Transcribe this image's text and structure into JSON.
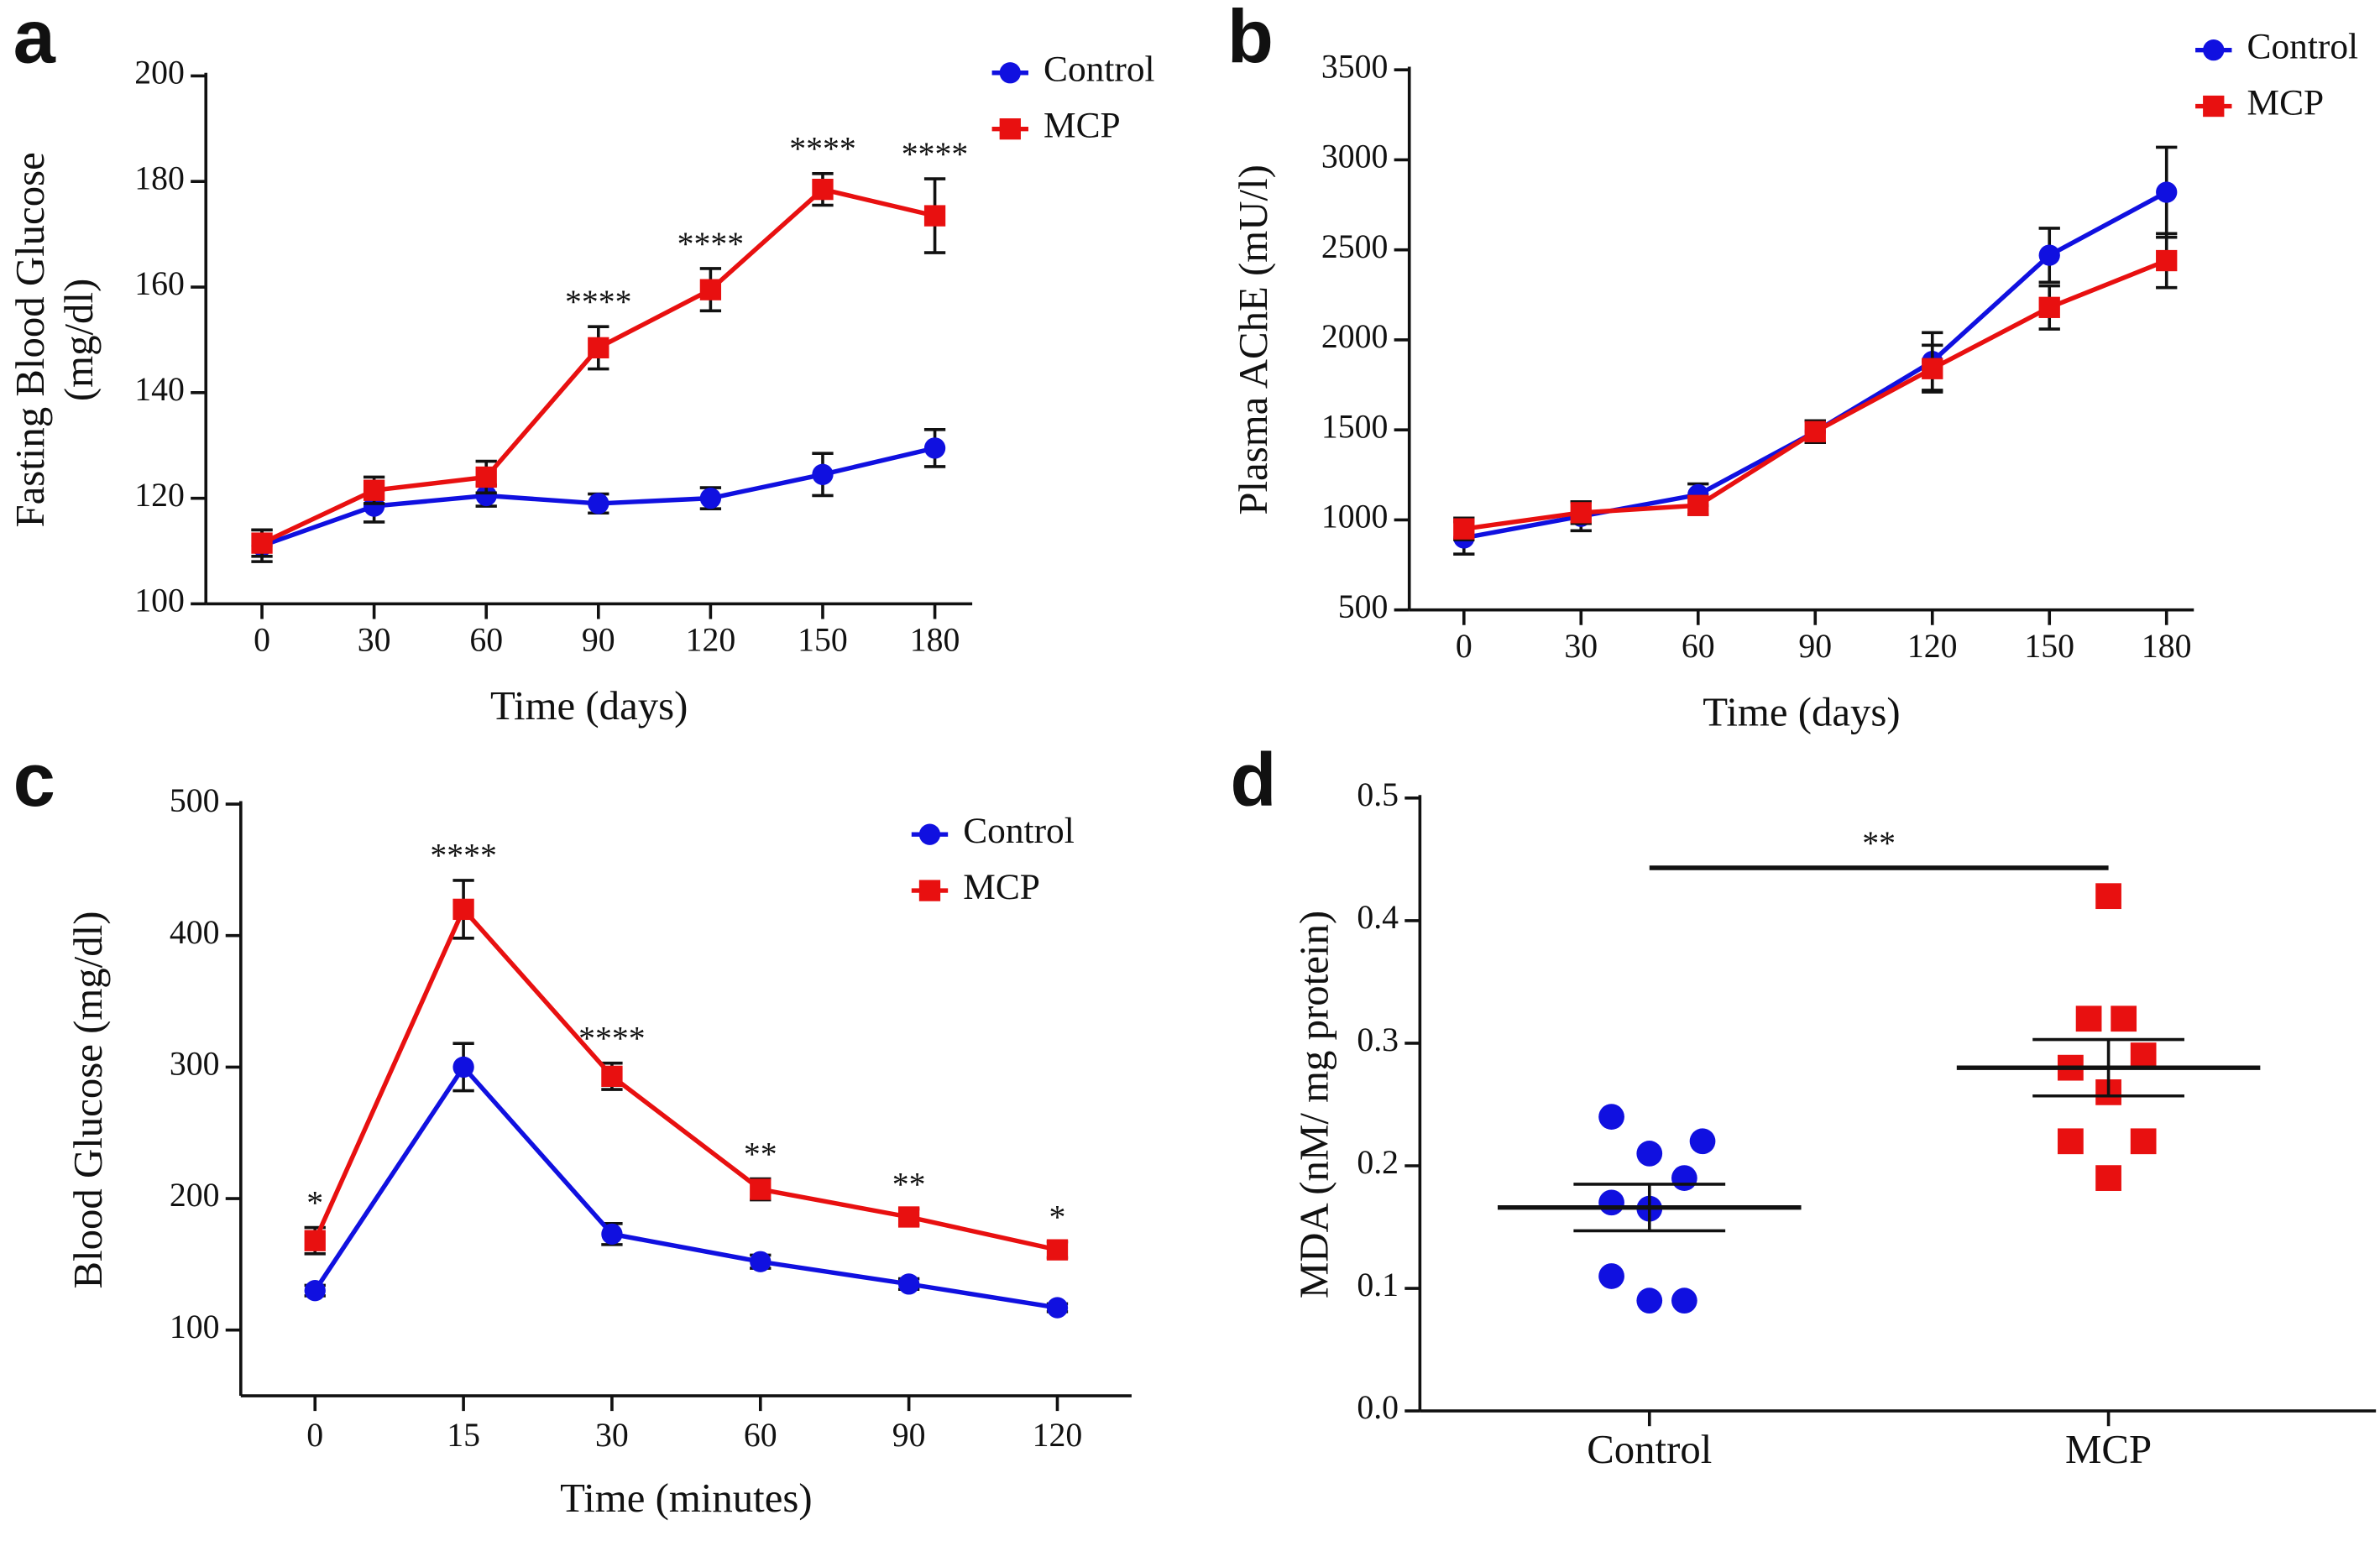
{
  "chart_data": [
    {
      "type": "line",
      "panel": "a",
      "xlabel": "Time (days)",
      "ylabel": [
        "Fasting Blood Glucose",
        "(mg/dl)"
      ],
      "x": [
        0,
        30,
        60,
        90,
        120,
        150,
        180
      ],
      "xlim": [
        -15,
        190
      ],
      "xticks": [
        0,
        30,
        60,
        90,
        120,
        150,
        180
      ],
      "ylim": [
        100,
        200
      ],
      "yticks": [
        100,
        120,
        140,
        160,
        180,
        200
      ],
      "legend": "upper right",
      "series": [
        {
          "name": "Control",
          "color": "#1010e0",
          "marker": "circle",
          "values": [
            111,
            118.5,
            120.5,
            119,
            120,
            124.5,
            129.5
          ],
          "errors": [
            3,
            3,
            2,
            1.8,
            2,
            4,
            3.5
          ]
        },
        {
          "name": "MCP",
          "color": "#e81010",
          "marker": "square",
          "values": [
            111.5,
            121.5,
            124,
            148.5,
            159.5,
            178.5,
            173.5
          ],
          "errors": [
            2.5,
            2.5,
            3,
            4,
            4,
            3,
            7
          ]
        }
      ],
      "annotations": [
        null,
        null,
        null,
        "****",
        "****",
        "****",
        "****"
      ]
    },
    {
      "type": "line",
      "panel": "b",
      "xlabel": "Time (days)",
      "ylabel": [
        "Plasma AChE (mU/l)"
      ],
      "x": [
        0,
        30,
        60,
        90,
        120,
        150,
        180
      ],
      "xlim": [
        -14,
        187
      ],
      "xticks": [
        0,
        30,
        60,
        90,
        120,
        150,
        180
      ],
      "ylim": [
        500,
        3500
      ],
      "yticks": [
        500,
        1000,
        1500,
        2000,
        2500,
        3000,
        3500
      ],
      "legend": "upper right",
      "series": [
        {
          "name": "Control",
          "color": "#1010e0",
          "marker": "circle",
          "values": [
            900,
            1020,
            1140,
            1490,
            1880,
            2470,
            2820
          ],
          "errors": [
            90,
            80,
            60,
            60,
            160,
            150,
            250
          ]
        },
        {
          "name": "MCP",
          "color": "#e81010",
          "marker": "square",
          "values": [
            950,
            1040,
            1080,
            1490,
            1840,
            2180,
            2440
          ],
          "errors": [
            60,
            60,
            50,
            60,
            130,
            120,
            150
          ]
        }
      ]
    },
    {
      "type": "line",
      "panel": "c",
      "xlabel": "Time (minutes)",
      "ylabel": [
        "Blood Glucose (mg/dl)"
      ],
      "categories": [
        "0",
        "15",
        "30",
        "60",
        "90",
        "120"
      ],
      "ylim": [
        50,
        500
      ],
      "yticks": [
        100,
        200,
        300,
        400,
        500
      ],
      "legend": "upper right",
      "series": [
        {
          "name": "Control",
          "color": "#1010e0",
          "marker": "circle",
          "values": [
            130,
            300,
            173,
            152,
            135,
            117
          ],
          "errors": [
            4,
            18,
            8,
            5,
            4,
            3
          ]
        },
        {
          "name": "MCP",
          "color": "#e81010",
          "marker": "square",
          "values": [
            168,
            420,
            293,
            207,
            186,
            161
          ],
          "errors": [
            10,
            22,
            10,
            8,
            6,
            6
          ]
        }
      ],
      "annotations": [
        "*",
        "****",
        "****",
        "**",
        "**",
        "*"
      ]
    },
    {
      "type": "scatter",
      "panel": "d",
      "ylabel": [
        "MDA (nM/ mg protein)"
      ],
      "categories": [
        "Control",
        "MCP"
      ],
      "ylim": [
        0,
        0.5
      ],
      "yticks": [
        {
          "value": 0,
          "label": "0.0"
        },
        0.1,
        0.2,
        0.3,
        0.4,
        0.5
      ],
      "series": [
        {
          "name": "Control",
          "color": "#1010e0",
          "marker": "circle",
          "values": [
            0.24,
            0.21,
            0.22,
            0.17,
            0.165,
            0.19,
            0.11,
            0.09,
            0.09
          ],
          "mean": 0.166,
          "sem": 0.019
        },
        {
          "name": "MCP",
          "color": "#e81010",
          "marker": "square",
          "values": [
            0.42,
            0.32,
            0.32,
            0.28,
            0.26,
            0.29,
            0.22,
            0.19,
            0.22
          ],
          "mean": 0.28,
          "sem": 0.023
        }
      ],
      "significance": "**"
    }
  ]
}
